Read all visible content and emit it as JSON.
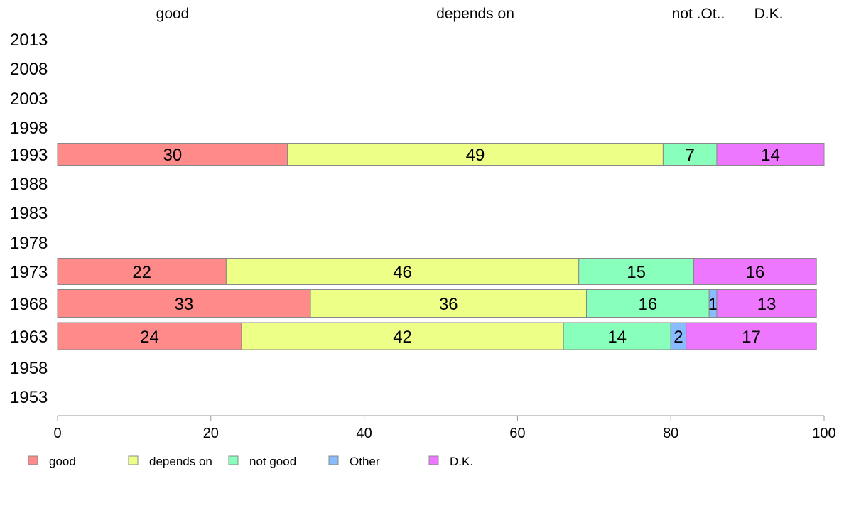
{
  "chart_data": {
    "type": "bar",
    "orientation": "horizontal",
    "stacked": true,
    "title": "",
    "xlabel": "",
    "ylabel": "",
    "xlim": [
      0,
      100
    ],
    "x_ticks": [
      "0",
      "20",
      "40",
      "60",
      "80",
      "100"
    ],
    "categories": [
      "2013",
      "2008",
      "2003",
      "1998",
      "1993",
      "1988",
      "1983",
      "1978",
      "1973",
      "1968",
      "1963",
      "1958",
      "1953"
    ],
    "top_labels": [
      "good",
      "depends on",
      "not .Ot..",
      "D.K."
    ],
    "series": [
      {
        "name": "good",
        "color": "#ff8a8a",
        "values": [
          null,
          null,
          null,
          null,
          30,
          null,
          null,
          null,
          22,
          33,
          24,
          null,
          null
        ]
      },
      {
        "name": "depends on",
        "color": "#eeff88",
        "values": [
          null,
          null,
          null,
          null,
          49,
          null,
          null,
          null,
          46,
          36,
          42,
          null,
          null
        ]
      },
      {
        "name": "not good",
        "color": "#88ffbb",
        "values": [
          null,
          null,
          null,
          null,
          7,
          null,
          null,
          null,
          15,
          16,
          14,
          null,
          null
        ]
      },
      {
        "name": "Other",
        "color": "#88bbff",
        "values": [
          null,
          null,
          null,
          null,
          0,
          null,
          null,
          null,
          0,
          1,
          2,
          null,
          null
        ]
      },
      {
        "name": "D.K.",
        "color": "#ee77ff",
        "values": [
          null,
          null,
          null,
          null,
          14,
          null,
          null,
          null,
          16,
          13,
          17,
          null,
          null
        ]
      }
    ],
    "legend_position": "bottom-left"
  }
}
